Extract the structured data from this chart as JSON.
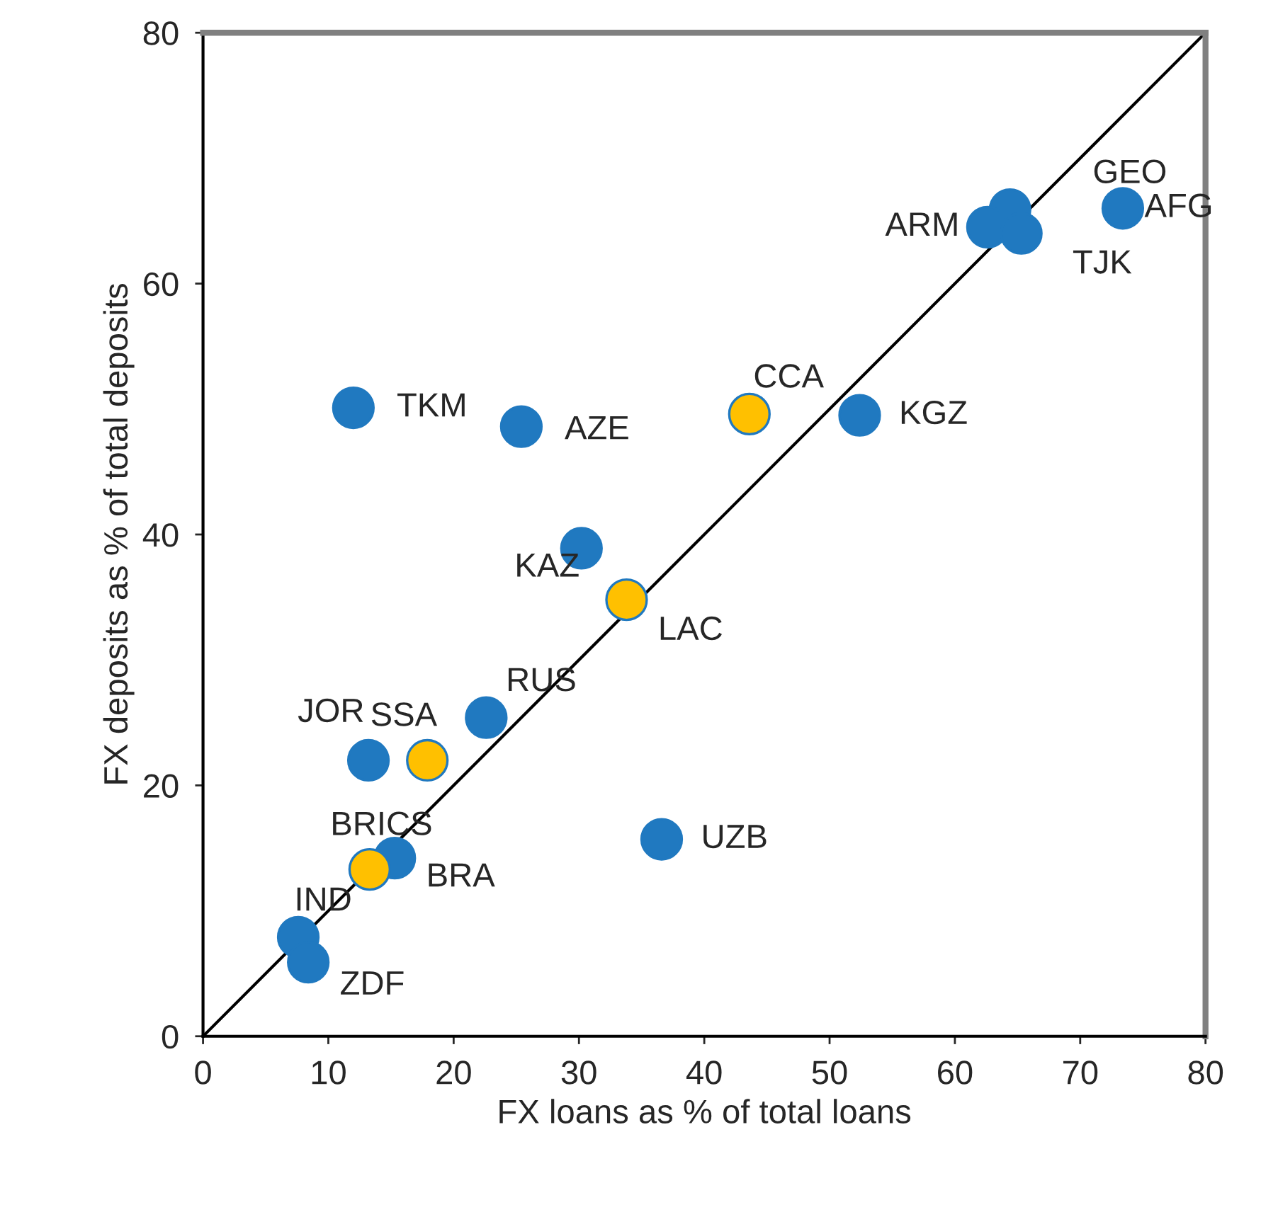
{
  "chart_data": {
    "type": "scatter",
    "xlabel": "FX loans as % of total loans",
    "ylabel": "FX deposits as % of total deposits",
    "xlim": [
      0,
      80
    ],
    "ylim": [
      0,
      80
    ],
    "xticks": [
      0,
      10,
      20,
      30,
      40,
      50,
      60,
      70,
      80
    ],
    "yticks": [
      0,
      20,
      40,
      60,
      80
    ],
    "grid": false,
    "marker": "circle",
    "series": [
      {
        "type": "line",
        "color": "#000000",
        "x": [
          0,
          80
        ],
        "values": [
          0,
          80
        ],
        "marker": "none",
        "line_style": "solid"
      },
      {
        "color": "#2079c0",
        "x": [
          73.4,
          64.4,
          62.6,
          65.3,
          52.4,
          12.0,
          25.4,
          30.2,
          22.6,
          13.2,
          15.3,
          7.6,
          8.4,
          36.6
        ],
        "values": [
          66.0,
          65.9,
          64.5,
          64.0,
          49.5,
          50.1,
          48.6,
          38.9,
          25.4,
          22.0,
          14.2,
          7.9,
          5.9,
          15.7
        ]
      },
      {
        "color": "#ffc000",
        "x": [
          43.6,
          33.8,
          17.9,
          13.3
        ],
        "values": [
          49.6,
          34.8,
          22.0,
          13.3
        ]
      }
    ],
    "annotations": [
      {
        "text": "AFG",
        "x": 73.4,
        "y": 66.0
      },
      {
        "text": "GEO",
        "x": 64.4,
        "y": 65.9
      },
      {
        "text": "ARM",
        "x": 62.6,
        "y": 64.5
      },
      {
        "text": "TJK",
        "x": 65.3,
        "y": 64.0
      },
      {
        "text": "KGZ",
        "x": 52.4,
        "y": 49.5
      },
      {
        "text": "TKM",
        "x": 12.0,
        "y": 50.1
      },
      {
        "text": "AZE",
        "x": 25.4,
        "y": 48.6
      },
      {
        "text": "KAZ",
        "x": 30.2,
        "y": 38.9
      },
      {
        "text": "RUS",
        "x": 22.6,
        "y": 25.4
      },
      {
        "text": "JOR",
        "x": 13.2,
        "y": 22.0
      },
      {
        "text": "BRA",
        "x": 15.3,
        "y": 14.2
      },
      {
        "text": "IND",
        "x": 7.6,
        "y": 7.9
      },
      {
        "text": "ZDF",
        "x": 8.4,
        "y": 5.9
      },
      {
        "text": "UZB",
        "x": 36.6,
        "y": 15.7
      },
      {
        "text": "CCA",
        "x": 43.6,
        "y": 49.6
      },
      {
        "text": "LAC",
        "x": 33.8,
        "y": 34.8
      },
      {
        "text": "SSA",
        "x": 17.9,
        "y": 22.0
      },
      {
        "text": "BRICS",
        "x": 13.3,
        "y": 13.3
      }
    ]
  }
}
